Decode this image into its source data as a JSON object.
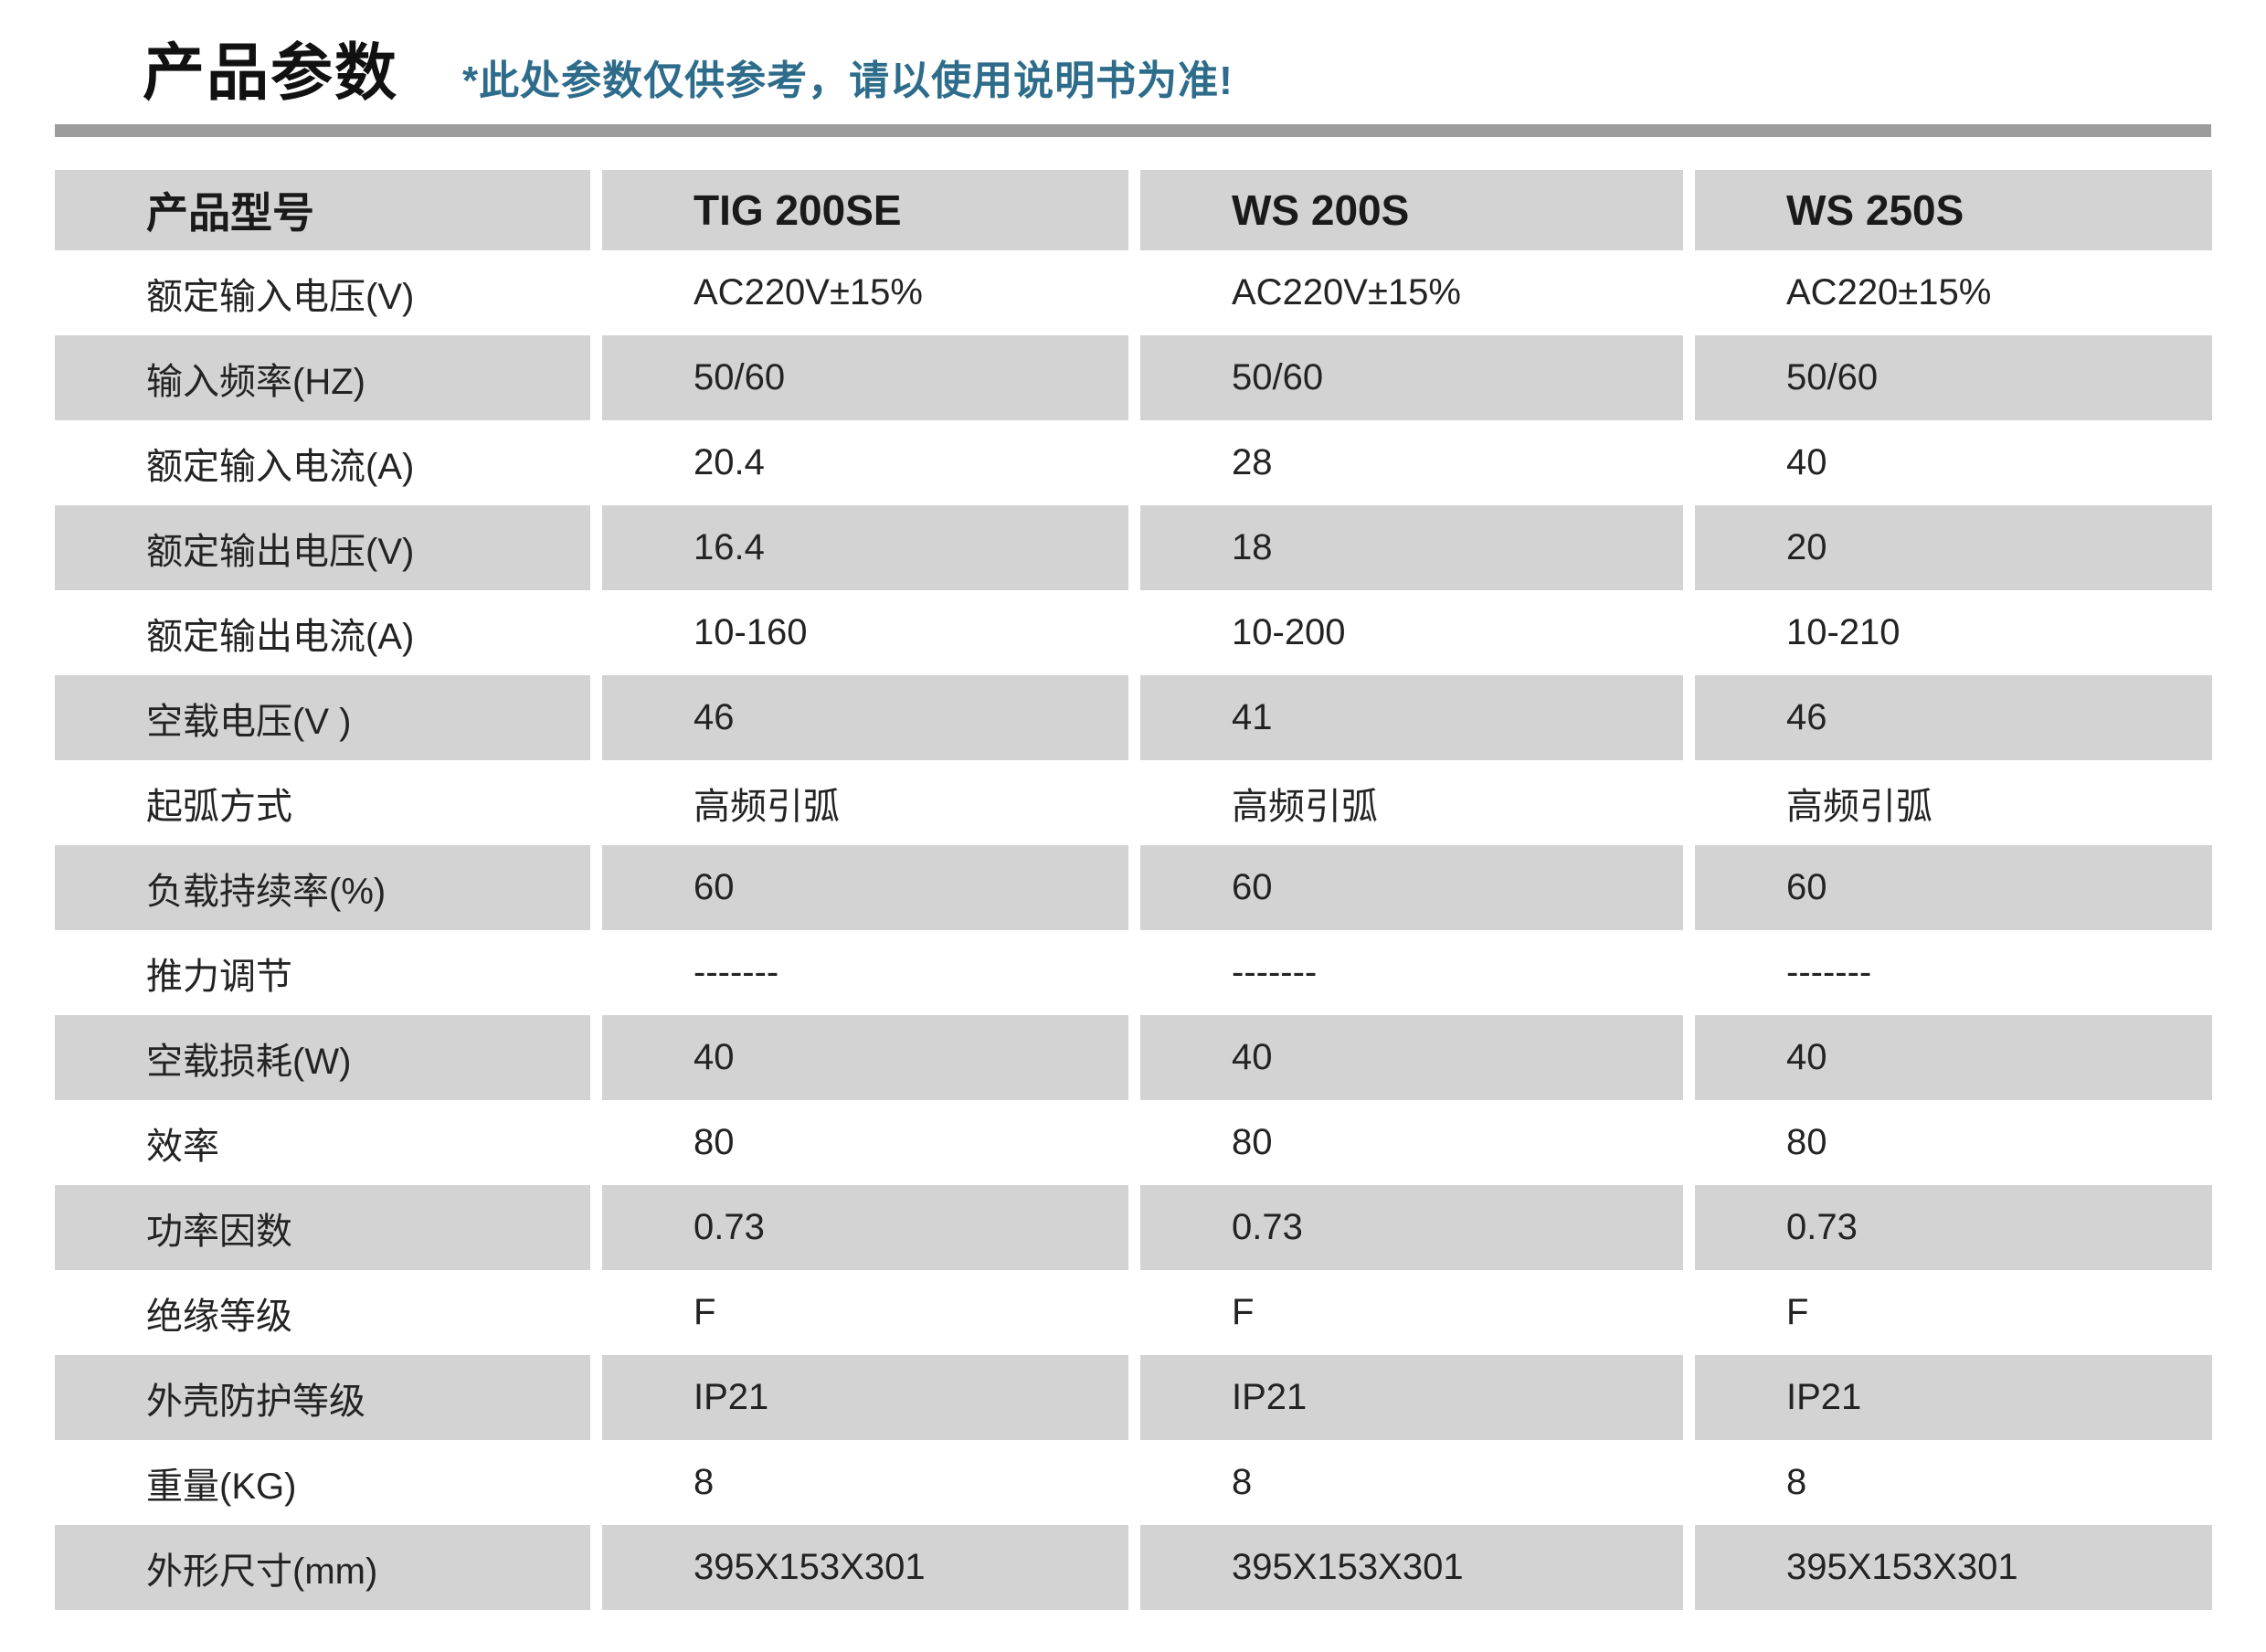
{
  "page": {
    "title": "产品参数",
    "subtitle": "*此处参数仅供参考，请以使用说明书为准!"
  },
  "colors": {
    "subtitle_accent": "#2e6c8b",
    "divider_gray": "#9c9c9c",
    "row_band_gray": "#d3d3d3",
    "text": "#232323"
  },
  "table": {
    "header": [
      "产品型号",
      "TIG 200SE",
      "WS 200S",
      "WS 250S"
    ],
    "rows": [
      {
        "label": "额定输入电压(V)",
        "values": [
          "AC220V±15%",
          "AC220V±15%",
          "AC220±15%"
        ]
      },
      {
        "label": "输入频率(HZ)",
        "values": [
          "50/60",
          "50/60",
          "50/60"
        ]
      },
      {
        "label": "额定输入电流(A)",
        "values": [
          "20.4",
          "28",
          "40"
        ]
      },
      {
        "label": "额定输出电压(V)",
        "values": [
          "16.4",
          "18",
          "20"
        ]
      },
      {
        "label": "额定输出电流(A)",
        "values": [
          "10-160",
          "10-200",
          "10-210"
        ]
      },
      {
        "label": "空载电压(V )",
        "values": [
          "46",
          "41",
          "46"
        ]
      },
      {
        "label": "起弧方式",
        "values": [
          "高频引弧",
          "高频引弧",
          "高频引弧"
        ]
      },
      {
        "label": "负载持续率(%)",
        "values": [
          "60",
          "60",
          "60"
        ]
      },
      {
        "label": "推力调节",
        "values": [
          "-------",
          "-------",
          "-------"
        ]
      },
      {
        "label": "空载损耗(W)",
        "values": [
          "40",
          "40",
          "40"
        ]
      },
      {
        "label": "效率",
        "values": [
          "80",
          "80",
          "80"
        ]
      },
      {
        "label": "功率因数",
        "values": [
          "0.73",
          "0.73",
          "0.73"
        ]
      },
      {
        "label": "绝缘等级",
        "values": [
          "F",
          "F",
          "F"
        ]
      },
      {
        "label": "外壳防护等级",
        "values": [
          "IP21",
          "IP21",
          "IP21"
        ]
      },
      {
        "label": "重量(KG)",
        "values": [
          "8",
          "8",
          "8"
        ]
      },
      {
        "label": "外形尺寸(mm)",
        "values": [
          "395X153X301",
          "395X153X301",
          "395X153X301"
        ]
      }
    ]
  }
}
